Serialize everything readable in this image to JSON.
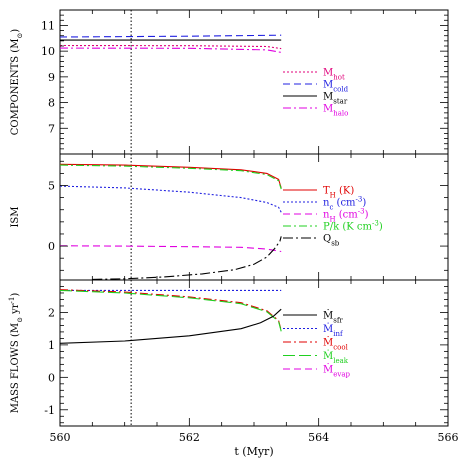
{
  "chart_data": {
    "type": "line",
    "x_label": "t (Myr)",
    "x_ticks": [
      560,
      562,
      564,
      566
    ],
    "xlim": [
      560,
      566
    ],
    "vline_x": 561.1,
    "panels": [
      {
        "id": "components",
        "ylabel_main": "COMPONENTS (M",
        "ylabel_sub": "⊙",
        "ylabel_close": ")",
        "ylim": [
          6.0,
          11.6
        ],
        "y_ticks": [
          7,
          8,
          9,
          10,
          11
        ],
        "legend": [
          {
            "main": "M",
            "sub": "hot",
            "color": "#e0007a",
            "dash": "2,2"
          },
          {
            "main": "M",
            "sub": "cold",
            "color": "#2020e0",
            "dash": "7,4"
          },
          {
            "main": "M",
            "sub": "star",
            "color": "#000000",
            "dash": ""
          },
          {
            "main": "M",
            "sub": "halo",
            "color": "#e000e0",
            "dash": "8,3,2,3"
          }
        ],
        "series": [
          {
            "color": "#2020e0",
            "dash": "7,4",
            "x": [
              560,
              562,
              563.42
            ],
            "y": [
              10.55,
              10.58,
              10.62
            ]
          },
          {
            "color": "#000000",
            "dash": "",
            "x": [
              560,
              562,
              563.42
            ],
            "y": [
              10.43,
              10.43,
              10.43
            ]
          },
          {
            "color": "#e0007a",
            "dash": "2,2",
            "x": [
              560,
              562,
              563.2,
              563.42
            ],
            "y": [
              10.22,
              10.21,
              10.18,
              10.1
            ]
          },
          {
            "color": "#e000e0",
            "dash": "8,3,2,3",
            "x": [
              560,
              562,
              563.2,
              563.42
            ],
            "y": [
              10.12,
              10.11,
              10.05,
              9.95
            ]
          }
        ]
      },
      {
        "id": "ism",
        "ylabel_main": "ISM",
        "ylabel_sub": "",
        "ylabel_close": "",
        "ylim": [
          -2.8,
          7.6
        ],
        "y_ticks": [
          0,
          5
        ],
        "legend": [
          {
            "main": "T",
            "sub": "H",
            "rest": " (K)",
            "color": "#e00000",
            "dash": ""
          },
          {
            "main": "n",
            "sub": "c",
            "rest": " (cm",
            "sup": "-3",
            "close": ")",
            "color": "#2020e0",
            "dash": "2,2"
          },
          {
            "main": "n",
            "sub": "H",
            "rest": " (cm",
            "sup": "-3",
            "close": ")",
            "color": "#e000e0",
            "dash": "7,4"
          },
          {
            "main": "P/k",
            "sub": "",
            "rest": " (K cm",
            "sup": "-3",
            "close": ")",
            "color": "#20d020",
            "dash": "8,3,2,3"
          },
          {
            "main": "Q",
            "sub": "sb",
            "rest": "",
            "color": "#000000",
            "dash": "10,3,2,3"
          }
        ],
        "series": [
          {
            "color": "#e00000",
            "dash": "",
            "x": [
              560,
              561,
              562,
              562.8,
              563.2,
              563.38,
              563.42
            ],
            "y": [
              6.75,
              6.68,
              6.5,
              6.3,
              6.0,
              5.5,
              4.8
            ]
          },
          {
            "color": "#20d020",
            "dash": "8,3,2,3",
            "x": [
              560,
              561,
              562,
              562.8,
              563.2,
              563.38,
              563.42
            ],
            "y": [
              6.68,
              6.6,
              6.42,
              6.22,
              5.9,
              5.4,
              4.7
            ]
          },
          {
            "color": "#2020e0",
            "dash": "2,2",
            "x": [
              560,
              561,
              562,
              562.8,
              563.2,
              563.38,
              563.42
            ],
            "y": [
              4.95,
              4.8,
              4.45,
              4.0,
              3.6,
              3.2,
              2.8
            ]
          },
          {
            "color": "#e000e0",
            "dash": "7,4",
            "x": [
              560,
              561,
              562,
              562.8,
              563.2,
              563.42
            ],
            "y": [
              0.02,
              0.0,
              -0.05,
              -0.1,
              -0.25,
              -0.45
            ]
          },
          {
            "color": "#000000",
            "dash": "10,3,2,3",
            "x": [
              560.5,
              561,
              561.6,
              562.2,
              562.7,
              563.0,
              563.2,
              563.32,
              563.4,
              563.42
            ],
            "y": [
              -2.75,
              -2.7,
              -2.55,
              -2.3,
              -1.95,
              -1.5,
              -0.9,
              -0.2,
              0.4,
              0.8
            ]
          }
        ]
      },
      {
        "id": "flows",
        "ylabel_main": "MASS FLOWS (M",
        "ylabel_sub": "⊙",
        "ylabel_close": " yr",
        "ylabel_sup": "-1",
        "ylabel_end": ")",
        "ylim": [
          -1.5,
          3.0
        ],
        "y_ticks": [
          -1,
          0,
          1,
          2
        ],
        "legend": [
          {
            "main": "Ṁ",
            "sub": "sfr",
            "color": "#000000",
            "dash": ""
          },
          {
            "main": "Ṁ",
            "sub": "inf",
            "color": "#2020e0",
            "dash": "2,2"
          },
          {
            "main": "Ṁ",
            "sub": "cool",
            "color": "#e00000",
            "dash": "8,3,2,3"
          },
          {
            "main": "Ṁ",
            "sub": "leak",
            "color": "#20d020",
            "dash": "12,4"
          },
          {
            "main": "Ṁ",
            "sub": "evap",
            "color": "#e000e0",
            "dash": "7,4"
          }
        ],
        "series": [
          {
            "color": "#2020e0",
            "dash": "2,2",
            "x": [
              560,
              562,
              563.42
            ],
            "y": [
              2.68,
              2.68,
              2.68
            ]
          },
          {
            "color": "#e00000",
            "dash": "8,3,2,3",
            "x": [
              560,
              561,
              562,
              562.8,
              563.2,
              563.38,
              563.42
            ],
            "y": [
              2.7,
              2.63,
              2.48,
              2.3,
              2.05,
              1.75,
              1.45
            ]
          },
          {
            "color": "#20d020",
            "dash": "12,4",
            "x": [
              560,
              561,
              562,
              562.8,
              563.2,
              563.38,
              563.42
            ],
            "y": [
              2.68,
              2.6,
              2.45,
              2.27,
              2.02,
              1.72,
              1.42
            ]
          },
          {
            "color": "#000000",
            "dash": "",
            "x": [
              560,
              561,
              562,
              562.8,
              563.1,
              563.3,
              563.42
            ],
            "y": [
              1.05,
              1.12,
              1.28,
              1.5,
              1.68,
              1.88,
              2.1
            ]
          }
        ]
      }
    ]
  }
}
